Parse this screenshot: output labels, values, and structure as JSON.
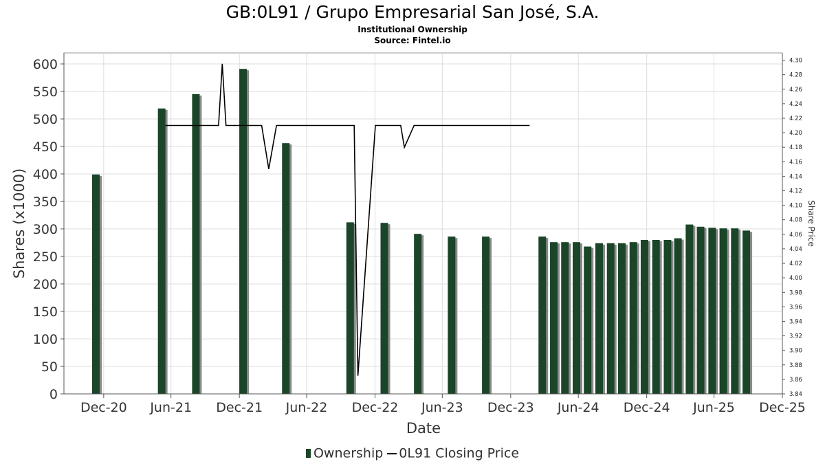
{
  "title": "GB:0L91 / Grupo Empresarial San José, S.A.",
  "subtitle": "Institutional Ownership",
  "source": "Source: Fintel.io",
  "colors": {
    "bar": "#1b4528",
    "bar_shadow": "#8a8a8a",
    "line": "#000000",
    "grid": "#dddddd"
  },
  "chart_data": {
    "type": "bar",
    "xlabel": "Date",
    "ylabel": "Shares (x1000)",
    "y2label": "Share Price",
    "x_range": [
      "2020-09-15",
      "2025-12-31"
    ],
    "ylim": [
      0,
      620
    ],
    "y2lim": [
      3.84,
      4.31
    ],
    "grid": true,
    "x_ticks": [
      {
        "date": "2020-12-31",
        "label": "Dec-20"
      },
      {
        "date": "2021-06-30",
        "label": "Jun-21"
      },
      {
        "date": "2021-12-31",
        "label": "Dec-21"
      },
      {
        "date": "2022-06-30",
        "label": "Jun-22"
      },
      {
        "date": "2022-12-31",
        "label": "Dec-22"
      },
      {
        "date": "2023-06-30",
        "label": "Jun-23"
      },
      {
        "date": "2023-12-31",
        "label": "Dec-23"
      },
      {
        "date": "2024-06-30",
        "label": "Jun-24"
      },
      {
        "date": "2024-12-31",
        "label": "Dec-24"
      },
      {
        "date": "2025-06-30",
        "label": "Jun-25"
      },
      {
        "date": "2025-12-31",
        "label": "Dec-25"
      }
    ],
    "y_ticks": [
      0,
      50,
      100,
      150,
      200,
      250,
      300,
      350,
      400,
      450,
      500,
      550,
      600
    ],
    "y2_ticks": [
      "3.84",
      "3.86",
      "3.88",
      "3.90",
      "3.92",
      "3.94",
      "3.96",
      "3.98",
      "4.00",
      "4.02",
      "4.04",
      "4.06",
      "4.08",
      "4.10",
      "4.12",
      "4.14",
      "4.16",
      "4.18",
      "4.20",
      "4.22",
      "4.24",
      "4.26",
      "4.28",
      "4.30"
    ],
    "legend": {
      "position": "bottom",
      "items": [
        "Ownership",
        "0L91 Closing Price"
      ]
    },
    "series": [
      {
        "name": "Ownership",
        "type": "bar",
        "points": [
          {
            "x": "2020-12-10",
            "y": 399
          },
          {
            "x": "2021-06-05",
            "y": 519
          },
          {
            "x": "2021-09-05",
            "y": 545
          },
          {
            "x": "2022-01-10",
            "y": 591
          },
          {
            "x": "2022-05-05",
            "y": 456
          },
          {
            "x": "2022-10-25",
            "y": 312
          },
          {
            "x": "2023-01-25",
            "y": 311
          },
          {
            "x": "2023-04-25",
            "y": 291
          },
          {
            "x": "2023-07-25",
            "y": 286
          },
          {
            "x": "2023-10-25",
            "y": 286
          },
          {
            "x": "2024-03-25",
            "y": 286
          },
          {
            "x": "2024-04-25",
            "y": 276
          },
          {
            "x": "2024-05-25",
            "y": 276
          },
          {
            "x": "2024-06-25",
            "y": 276
          },
          {
            "x": "2024-07-25",
            "y": 268
          },
          {
            "x": "2024-08-25",
            "y": 274
          },
          {
            "x": "2024-09-25",
            "y": 274
          },
          {
            "x": "2024-10-25",
            "y": 274
          },
          {
            "x": "2024-11-25",
            "y": 276
          },
          {
            "x": "2024-12-25",
            "y": 280
          },
          {
            "x": "2025-01-25",
            "y": 280
          },
          {
            "x": "2025-02-25",
            "y": 280
          },
          {
            "x": "2025-03-25",
            "y": 283
          },
          {
            "x": "2025-04-25",
            "y": 308
          },
          {
            "x": "2025-05-25",
            "y": 304
          },
          {
            "x": "2025-06-25",
            "y": 302
          },
          {
            "x": "2025-07-25",
            "y": 301
          },
          {
            "x": "2025-08-25",
            "y": 301
          },
          {
            "x": "2025-09-25",
            "y": 297
          }
        ]
      },
      {
        "name": "0L91 Closing Price",
        "type": "line",
        "axis": "right",
        "points": [
          {
            "x": "2021-06-15",
            "y": 4.21
          },
          {
            "x": "2021-11-05",
            "y": 4.21
          },
          {
            "x": "2021-11-15",
            "y": 4.295
          },
          {
            "x": "2021-11-25",
            "y": 4.21
          },
          {
            "x": "2022-03-01",
            "y": 4.21
          },
          {
            "x": "2022-03-20",
            "y": 4.15
          },
          {
            "x": "2022-04-10",
            "y": 4.21
          },
          {
            "x": "2022-11-05",
            "y": 4.21
          },
          {
            "x": "2022-11-15",
            "y": 3.865
          },
          {
            "x": "2023-01-01",
            "y": 4.21
          },
          {
            "x": "2023-03-10",
            "y": 4.21
          },
          {
            "x": "2023-03-20",
            "y": 4.18
          },
          {
            "x": "2023-04-15",
            "y": 4.21
          },
          {
            "x": "2024-02-20",
            "y": 4.21
          }
        ]
      }
    ]
  }
}
